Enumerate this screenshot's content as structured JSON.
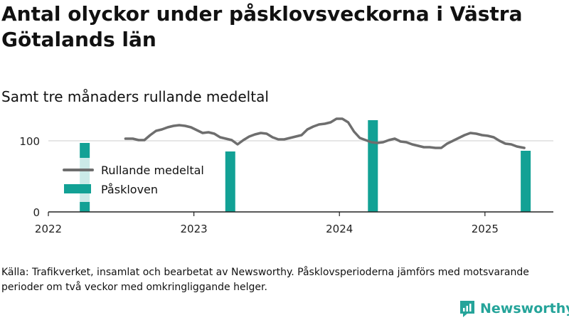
{
  "title": "Antal olyckor under påsklovsveckorna i Västra Götalands län",
  "subtitle": "Samt tre månaders rullande medeltal",
  "source": "Källa: Trafikverket, insamlat och bearbetat av Newsworthy. Påsklovsperioderna jämförs med motsvarande perioder om två veckor med omkringliggande helger.",
  "brand": {
    "name": "Newsworthy",
    "icon": "newsworthy-logo-icon",
    "color": "#25a49a"
  },
  "chart_data": {
    "type": "bar",
    "xlim": [
      2022.0,
      2025.47
    ],
    "ylim": [
      0,
      140
    ],
    "yticks": [
      0,
      100
    ],
    "xticks": [
      {
        "value": 2022,
        "label": "2022"
      },
      {
        "value": 2023,
        "label": "2023"
      },
      {
        "value": 2024,
        "label": "2024"
      },
      {
        "value": 2025,
        "label": "2025"
      }
    ],
    "grid": true,
    "legend_position": "upper-left",
    "series": [
      {
        "name": "Rullande medeltal",
        "type": "line",
        "color": "#6e6e6e",
        "points": [
          [
            2022.53,
            103
          ],
          [
            2022.58,
            103
          ],
          [
            2022.62,
            101
          ],
          [
            2022.66,
            101
          ],
          [
            2022.7,
            108
          ],
          [
            2022.74,
            114
          ],
          [
            2022.78,
            116
          ],
          [
            2022.82,
            119
          ],
          [
            2022.86,
            121
          ],
          [
            2022.9,
            122
          ],
          [
            2022.94,
            121
          ],
          [
            2022.98,
            119
          ],
          [
            2023.02,
            115
          ],
          [
            2023.06,
            111
          ],
          [
            2023.1,
            112
          ],
          [
            2023.14,
            110
          ],
          [
            2023.18,
            105
          ],
          [
            2023.22,
            103
          ],
          [
            2023.26,
            101
          ],
          [
            2023.3,
            95
          ],
          [
            2023.34,
            101
          ],
          [
            2023.38,
            106
          ],
          [
            2023.42,
            109
          ],
          [
            2023.46,
            111
          ],
          [
            2023.5,
            110
          ],
          [
            2023.54,
            105
          ],
          [
            2023.58,
            102
          ],
          [
            2023.62,
            102
          ],
          [
            2023.66,
            104
          ],
          [
            2023.7,
            106
          ],
          [
            2023.74,
            108
          ],
          [
            2023.78,
            116
          ],
          [
            2023.82,
            120
          ],
          [
            2023.86,
            123
          ],
          [
            2023.9,
            124
          ],
          [
            2023.94,
            126
          ],
          [
            2023.98,
            131
          ],
          [
            2024.02,
            131
          ],
          [
            2024.06,
            126
          ],
          [
            2024.1,
            113
          ],
          [
            2024.14,
            104
          ],
          [
            2024.18,
            101
          ],
          [
            2024.22,
            98
          ],
          [
            2024.26,
            97
          ],
          [
            2024.3,
            98
          ],
          [
            2024.34,
            101
          ],
          [
            2024.38,
            103
          ],
          [
            2024.42,
            99
          ],
          [
            2024.46,
            98
          ],
          [
            2024.5,
            95
          ],
          [
            2024.54,
            93
          ],
          [
            2024.58,
            91
          ],
          [
            2024.62,
            91
          ],
          [
            2024.66,
            90
          ],
          [
            2024.7,
            90
          ],
          [
            2024.74,
            96
          ],
          [
            2024.78,
            100
          ],
          [
            2024.82,
            104
          ],
          [
            2024.86,
            108
          ],
          [
            2024.9,
            111
          ],
          [
            2024.94,
            110
          ],
          [
            2024.98,
            108
          ],
          [
            2025.02,
            107
          ],
          [
            2025.06,
            105
          ],
          [
            2025.1,
            100
          ],
          [
            2025.14,
            96
          ],
          [
            2025.18,
            95
          ],
          [
            2025.22,
            92
          ],
          [
            2025.27,
            90
          ]
        ]
      },
      {
        "name": "Påskloven",
        "type": "bar",
        "color": "#12a195",
        "bars": [
          {
            "x": 2022.25,
            "value": 97,
            "highlighted": true
          },
          {
            "x": 2023.25,
            "value": 85,
            "highlighted": false
          },
          {
            "x": 2024.23,
            "value": 129,
            "highlighted": false
          },
          {
            "x": 2025.28,
            "value": 86,
            "highlighted": false
          }
        ]
      }
    ]
  }
}
